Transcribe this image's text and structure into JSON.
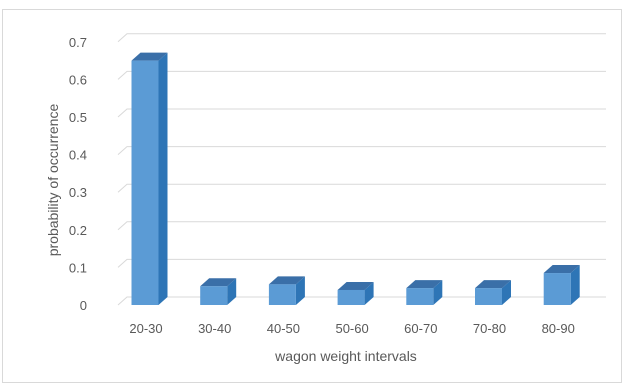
{
  "chart_data": {
    "type": "bar",
    "categories": [
      "20-30",
      "30-40",
      "40-50",
      "50-60",
      "60-70",
      "70-80",
      "80-90"
    ],
    "values": [
      0.65,
      0.05,
      0.055,
      0.04,
      0.045,
      0.045,
      0.085
    ],
    "title": "",
    "xlabel": "wagon weight intervals",
    "ylabel": "probability of occurrence",
    "ylim": [
      0,
      0.7
    ],
    "yticks": [
      "0",
      "0.1",
      "0.2",
      "0.3",
      "0.4",
      "0.5",
      "0.6",
      "0.7"
    ],
    "grid": true,
    "legend": "none",
    "style": "3d-column",
    "colors": {
      "face": "#5b9bd5",
      "side": "#2e75b6",
      "top": "#3a6fa8",
      "grid": "#d9d9d9",
      "text": "#595959"
    }
  }
}
